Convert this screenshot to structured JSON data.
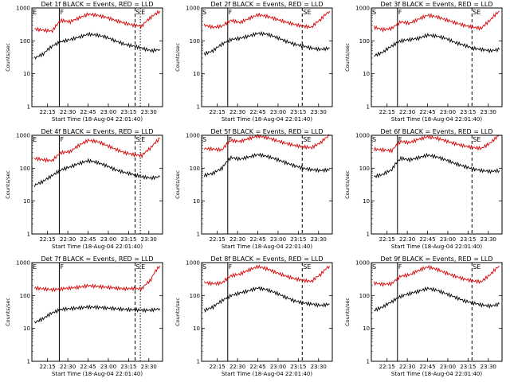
{
  "chart_data": [
    {
      "type": "line",
      "title": "Det 1f BLACK = Events, RED = LLD",
      "xlabel": "Start Time (18-Aug-04 22:01:40)",
      "ylabel": "Counts/sec",
      "yscale": "log",
      "ylim": [
        1,
        1000
      ],
      "yticks": [
        "1",
        "10",
        "100",
        "1000"
      ],
      "xticks": [
        "22:15",
        "22:30",
        "22:45",
        "23:00",
        "23:15",
        "23:30"
      ],
      "markers": [
        {
          "label": "E",
          "x": 0.0
        },
        {
          "label": "F",
          "x": 0.21
        },
        {
          "label": "S",
          "x": 0.79
        },
        {
          "label": "E",
          "x": 0.83
        }
      ],
      "series": [
        {
          "color": "#d80000",
          "values": [
            230,
            210,
            200,
            420,
            380,
            500,
            650,
            600,
            520,
            420,
            350,
            300,
            280,
            520,
            800
          ]
        },
        {
          "color": "#000000",
          "values": [
            30,
            40,
            70,
            95,
            110,
            130,
            160,
            150,
            130,
            100,
            80,
            70,
            60,
            50,
            55
          ]
        }
      ]
    },
    {
      "type": "line",
      "title": "Det 2f BLACK = Events, RED = LLD",
      "xlabel": "Start Time (18-Aug-04 22:01:40)",
      "ylabel": "Counts/sec",
      "yscale": "log",
      "ylim": [
        1,
        1000
      ],
      "yticks": [
        "1",
        "10",
        "100",
        "1000"
      ],
      "xticks": [
        "22:15",
        "22:30",
        "22:45",
        "23:00",
        "23:15",
        "23:30"
      ],
      "markers": [
        {
          "label": "S",
          "x": 0.0
        },
        {
          "label": "F",
          "x": 0.2
        },
        {
          "label": "SE",
          "x": 0.77
        }
      ],
      "series": [
        {
          "color": "#d80000",
          "values": [
            300,
            260,
            280,
            420,
            360,
            480,
            620,
            560,
            460,
            380,
            320,
            280,
            260,
            450,
            800
          ]
        },
        {
          "color": "#000000",
          "values": [
            40,
            50,
            80,
            110,
            120,
            140,
            170,
            160,
            130,
            100,
            80,
            70,
            60,
            55,
            60
          ]
        }
      ]
    },
    {
      "type": "line",
      "title": "Det 3f BLACK = Events, RED = LLD",
      "xlabel": "Start Time (18-Aug-04 22:01:40)",
      "ylabel": "Counts/sec",
      "yscale": "log",
      "ylim": [
        1,
        1000
      ],
      "yticks": [
        "1",
        "10",
        "100",
        "1000"
      ],
      "xticks": [
        "22:15",
        "22:30",
        "22:45",
        "23:00",
        "23:15",
        "23:30"
      ],
      "markers": [
        {
          "label": "S",
          "x": 0.0
        },
        {
          "label": "F",
          "x": 0.2
        },
        {
          "label": "SE",
          "x": 0.77
        }
      ],
      "series": [
        {
          "color": "#d80000",
          "values": [
            260,
            220,
            240,
            380,
            340,
            460,
            600,
            540,
            440,
            360,
            300,
            260,
            240,
            430,
            800
          ]
        },
        {
          "color": "#000000",
          "values": [
            35,
            45,
            70,
            100,
            110,
            120,
            150,
            140,
            120,
            90,
            75,
            60,
            55,
            50,
            55
          ]
        }
      ]
    },
    {
      "type": "line",
      "title": "Det 4f BLACK = Events, RED = LLD",
      "xlabel": "Start Time (18-Aug-04 22:01:40)",
      "ylabel": "Counts/sec",
      "yscale": "log",
      "ylim": [
        1,
        1000
      ],
      "yticks": [
        "1",
        "10",
        "100",
        "1000"
      ],
      "xticks": [
        "22:15",
        "22:30",
        "22:45",
        "23:00",
        "23:15",
        "23:30"
      ],
      "markers": [
        {
          "label": "E",
          "x": 0.0
        },
        {
          "label": "F",
          "x": 0.21
        },
        {
          "label": "S",
          "x": 0.79
        },
        {
          "label": "E",
          "x": 0.83
        }
      ],
      "series": [
        {
          "color": "#d80000",
          "values": [
            200,
            180,
            170,
            300,
            320,
            500,
            700,
            650,
            500,
            380,
            300,
            260,
            240,
            420,
            800
          ]
        },
        {
          "color": "#000000",
          "values": [
            30,
            40,
            60,
            90,
            110,
            140,
            170,
            150,
            120,
            90,
            75,
            65,
            55,
            50,
            55
          ]
        }
      ]
    },
    {
      "type": "line",
      "title": "Det 5f BLACK = Events, RED = LLD",
      "xlabel": "Start Time (18-Aug-04 22:01:40)",
      "ylabel": "Counts/sec",
      "yscale": "log",
      "ylim": [
        1,
        1000
      ],
      "yticks": [
        "1",
        "10",
        "100",
        "1000"
      ],
      "xticks": [
        "22:15",
        "22:30",
        "22:45",
        "23:00",
        "23:15",
        "23:30"
      ],
      "markers": [
        {
          "label": "S",
          "x": 0.0
        },
        {
          "label": "F",
          "x": 0.2
        },
        {
          "label": "SE",
          "x": 0.77
        }
      ],
      "series": [
        {
          "color": "#d80000",
          "values": [
            400,
            380,
            360,
            700,
            650,
            800,
            950,
            850,
            700,
            580,
            500,
            450,
            420,
            600,
            1000
          ]
        },
        {
          "color": "#000000",
          "values": [
            60,
            70,
            100,
            210,
            190,
            220,
            260,
            230,
            190,
            150,
            120,
            100,
            90,
            85,
            90
          ]
        }
      ]
    },
    {
      "type": "line",
      "title": "Det 6f BLACK = Events, RED = LLD",
      "xlabel": "Start Time (18-Aug-04 22:01:40)",
      "ylabel": "Counts/sec",
      "yscale": "log",
      "ylim": [
        1,
        1000
      ],
      "yticks": [
        "1",
        "10",
        "100",
        "1000"
      ],
      "xticks": [
        "22:15",
        "22:30",
        "22:45",
        "23:00",
        "23:15",
        "23:30"
      ],
      "markers": [
        {
          "label": "S",
          "x": 0.0
        },
        {
          "label": "F",
          "x": 0.2
        },
        {
          "label": "SE",
          "x": 0.77
        }
      ],
      "series": [
        {
          "color": "#d80000",
          "values": [
            380,
            360,
            340,
            650,
            600,
            760,
            900,
            820,
            680,
            560,
            480,
            430,
            400,
            580,
            1000
          ]
        },
        {
          "color": "#000000",
          "values": [
            55,
            65,
            90,
            200,
            180,
            210,
            250,
            220,
            180,
            140,
            115,
            95,
            85,
            80,
            85
          ]
        }
      ]
    },
    {
      "type": "line",
      "title": "Det 7f BLACK = Events, RED = LLD",
      "xlabel": "Start Time (18-Aug-04 22:01:40)",
      "ylabel": "Counts/sec",
      "yscale": "log",
      "ylim": [
        1,
        1000
      ],
      "yticks": [
        "1",
        "10",
        "100",
        "1000"
      ],
      "xticks": [
        "22:15",
        "22:30",
        "22:45",
        "23:00",
        "23:15",
        "23:30"
      ],
      "markers": [
        {
          "label": "E",
          "x": 0.0
        },
        {
          "label": "F",
          "x": 0.21
        },
        {
          "label": "S",
          "x": 0.79
        },
        {
          "label": "E",
          "x": 0.83
        }
      ],
      "series": [
        {
          "color": "#d80000",
          "values": [
            170,
            160,
            150,
            160,
            170,
            180,
            200,
            190,
            180,
            170,
            160,
            165,
            160,
            300,
            800
          ]
        },
        {
          "color": "#000000",
          "values": [
            15,
            20,
            30,
            38,
            40,
            42,
            45,
            44,
            42,
            40,
            38,
            37,
            36,
            36,
            40
          ]
        }
      ]
    },
    {
      "type": "line",
      "title": "Det 8f BLACK = Events, RED = LLD",
      "xlabel": "Start Time (18-Aug-04 22:01:40)",
      "ylabel": "Counts/sec",
      "yscale": "log",
      "ylim": [
        1,
        1000
      ],
      "yticks": [
        "1",
        "10",
        "100",
        "1000"
      ],
      "xticks": [
        "22:15",
        "22:30",
        "22:45",
        "23:00",
        "23:15",
        "23:30"
      ],
      "markers": [
        {
          "label": "S",
          "x": 0.0
        },
        {
          "label": "F",
          "x": 0.2
        },
        {
          "label": "SE",
          "x": 0.77
        }
      ],
      "series": [
        {
          "color": "#d80000",
          "values": [
            250,
            230,
            240,
            400,
            450,
            600,
            760,
            650,
            500,
            400,
            330,
            290,
            270,
            440,
            800
          ]
        },
        {
          "color": "#000000",
          "values": [
            35,
            45,
            70,
            100,
            120,
            140,
            170,
            150,
            120,
            90,
            70,
            60,
            55,
            50,
            55
          ]
        }
      ]
    },
    {
      "type": "line",
      "title": "Det 9f BLACK = Events, RED = LLD",
      "xlabel": "Start Time (18-Aug-04 22:01:40)",
      "ylabel": "Counts/sec",
      "yscale": "log",
      "ylim": [
        1,
        1000
      ],
      "yticks": [
        "1",
        "10",
        "100",
        "1000"
      ],
      "xticks": [
        "22:15",
        "22:30",
        "22:45",
        "23:00",
        "23:15",
        "23:30"
      ],
      "markers": [
        {
          "label": "S",
          "x": 0.0
        },
        {
          "label": "F",
          "x": 0.2
        },
        {
          "label": "SE",
          "x": 0.77
        }
      ],
      "series": [
        {
          "color": "#d80000",
          "values": [
            240,
            220,
            230,
            390,
            430,
            580,
            740,
            630,
            490,
            390,
            320,
            280,
            260,
            430,
            800
          ]
        },
        {
          "color": "#000000",
          "values": [
            35,
            45,
            65,
            95,
            115,
            135,
            165,
            145,
            115,
            90,
            70,
            60,
            52,
            48,
            55
          ]
        }
      ]
    }
  ]
}
